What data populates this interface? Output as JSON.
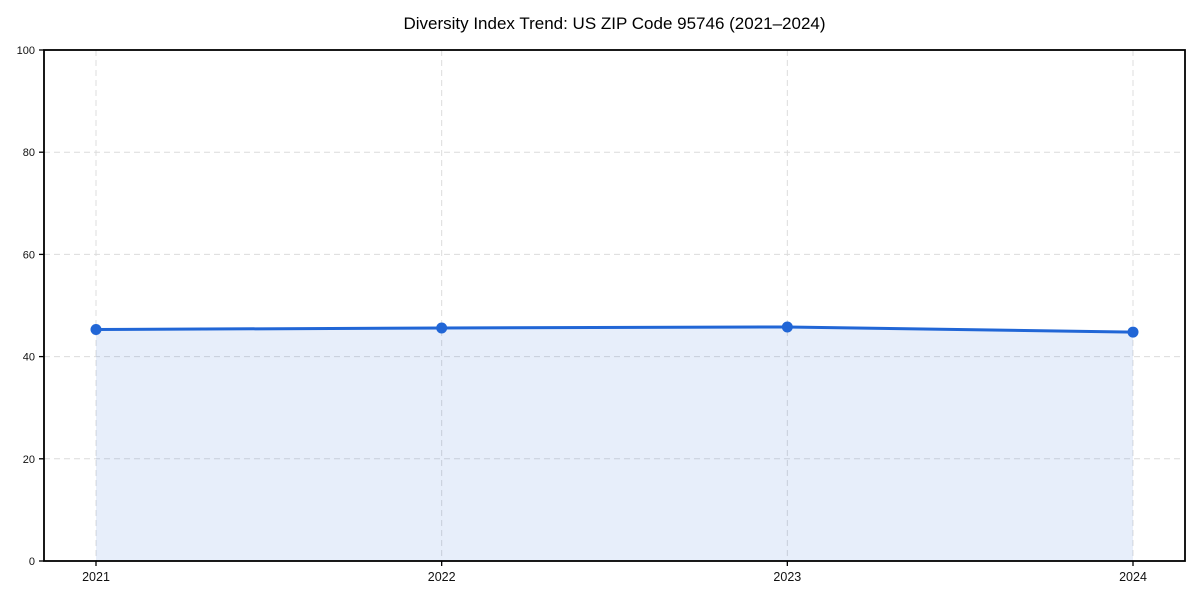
{
  "page": {
    "background": "#ffffff"
  },
  "chart_data": {
    "type": "area",
    "title": "Diversity Index Trend: US ZIP Code 95746 (2021–2024)",
    "categories": [
      "2021",
      "2022",
      "2023",
      "2024"
    ],
    "series": [
      {
        "name": "Diversity Index",
        "values": [
          45.3,
          45.6,
          45.8,
          44.8
        ]
      }
    ],
    "xlabel": "",
    "ylabel": "",
    "ylim": [
      0,
      100
    ],
    "yticks": [
      0,
      20,
      40,
      60,
      80,
      100
    ],
    "grid": true,
    "legend": "none",
    "colors": {
      "line": "#2166d6",
      "marker": "#2166d6",
      "fill": "rgba(33,102,214,0.11)",
      "grid": "#dcdcdc",
      "axis": "#000000",
      "tick_label": "#111111"
    }
  }
}
